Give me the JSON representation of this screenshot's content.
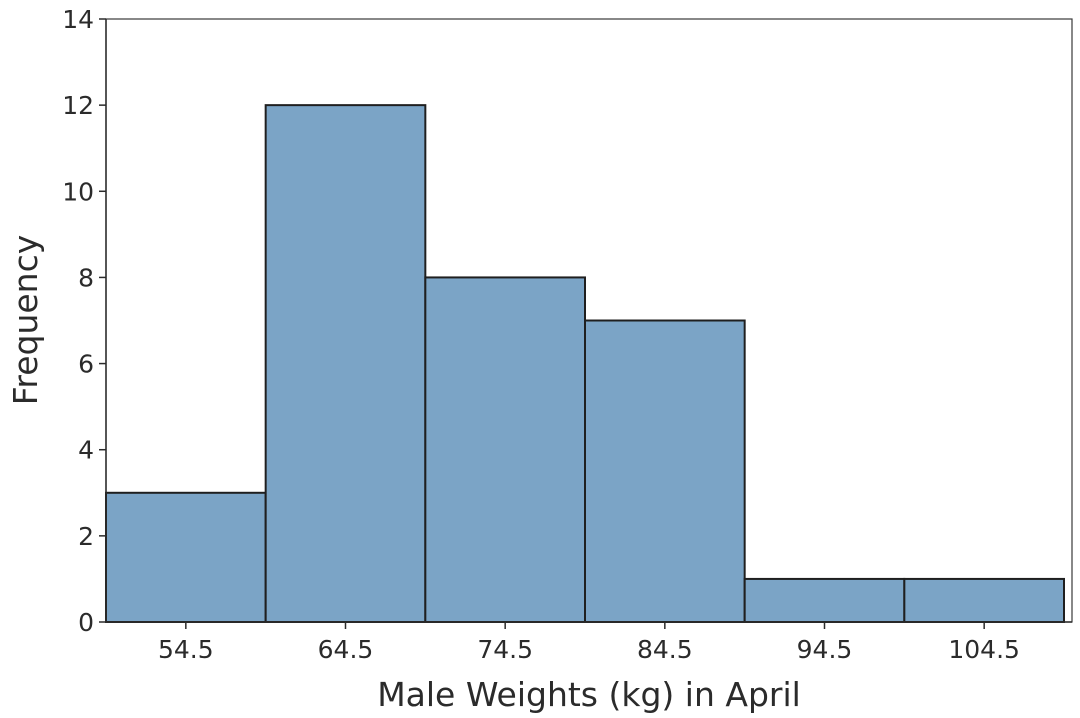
{
  "chart_data": {
    "type": "bar",
    "title": "",
    "xlabel": "Male Weights (kg) in April",
    "ylabel": "Frequency",
    "bin_width": 10,
    "categories": [
      "54.5",
      "64.5",
      "74.5",
      "84.5",
      "94.5",
      "104.5"
    ],
    "values": [
      3,
      12,
      8,
      7,
      1,
      1
    ],
    "y_ticks": [
      "0",
      "2",
      "4",
      "6",
      "8",
      "10",
      "12",
      "14"
    ],
    "ylim": [
      0,
      14
    ],
    "xlim": [
      49.5,
      109.5
    ],
    "grid": false,
    "legend": "none",
    "bar_color": "#7ba4c6",
    "edge_color": "#1f1f1f"
  }
}
